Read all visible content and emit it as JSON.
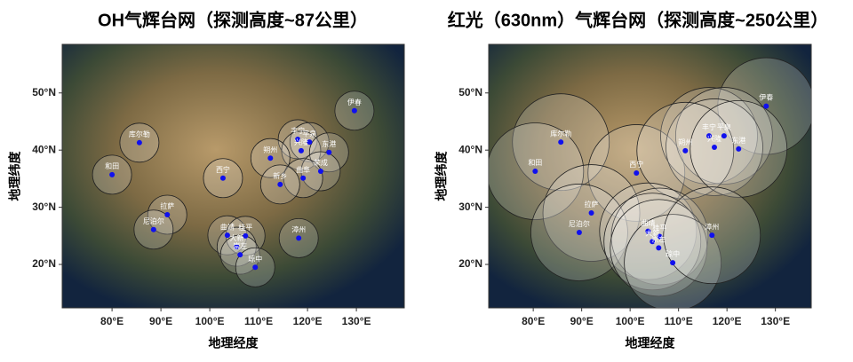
{
  "chart_data": [
    {
      "type": "map",
      "title": "OH气辉台网（探测高度~87公里）",
      "xlabel": "地理经度",
      "ylabel": "地理纬度",
      "xlim": [
        69.8,
        139.8
      ],
      "ylim": [
        12.4,
        58.5
      ],
      "xticks": [
        {
          "value": 80,
          "label": "80°E"
        },
        {
          "value": 90,
          "label": "90°E"
        },
        {
          "value": 100,
          "label": "100°E"
        },
        {
          "value": 110,
          "label": "110°E"
        },
        {
          "value": 120,
          "label": "120°E"
        },
        {
          "value": 130,
          "label": "130°E"
        }
      ],
      "yticks": [
        {
          "value": 20,
          "label": "20°N"
        },
        {
          "value": 30,
          "label": "30°N"
        },
        {
          "value": 40,
          "label": "40°N"
        },
        {
          "value": 50,
          "label": "50°N"
        }
      ],
      "circle_radius": 4,
      "point_color": "#1010ee",
      "stations": [
        {
          "name": "伊春",
          "lon": 129.6,
          "lat": 46.9
        },
        {
          "name": "库尔勒",
          "lon": 85.6,
          "lat": 41.3
        },
        {
          "name": "和田",
          "lon": 80.0,
          "lat": 35.7
        },
        {
          "name": "西宁",
          "lon": 102.7,
          "lat": 35.1
        },
        {
          "name": "拉萨",
          "lon": 91.3,
          "lat": 28.7
        },
        {
          "name": "尼泊尔",
          "lon": 88.5,
          "lat": 26.1
        },
        {
          "name": "丰宁",
          "lon": 118.0,
          "lat": 41.9
        },
        {
          "name": "平泉",
          "lon": 120.4,
          "lat": 41.4
        },
        {
          "name": "兴隆",
          "lon": 118.7,
          "lat": 39.9
        },
        {
          "name": "朔州",
          "lon": 112.4,
          "lat": 38.6
        },
        {
          "name": "东港",
          "lon": 124.4,
          "lat": 39.6
        },
        {
          "name": "荣成",
          "lon": 122.7,
          "lat": 36.3
        },
        {
          "name": "曲阜",
          "lon": 119.1,
          "lat": 35.1
        },
        {
          "name": "新乡",
          "lon": 114.4,
          "lat": 34.0
        },
        {
          "name": "曲靖",
          "lon": 103.6,
          "lat": 25.1
        },
        {
          "name": "桂平",
          "lon": 107.3,
          "lat": 25.0
        },
        {
          "name": "大新",
          "lon": 105.5,
          "lat": 23.1
        },
        {
          "name": "崇左",
          "lon": 106.2,
          "lat": 21.7
        },
        {
          "name": "琼中",
          "lon": 109.3,
          "lat": 19.5
        },
        {
          "name": "漳州",
          "lon": 118.2,
          "lat": 24.6
        }
      ]
    },
    {
      "type": "map",
      "title": "红光（630nm）气辉台网（探测高度~250公里）",
      "xlabel": "地理经度",
      "ylabel": "地理纬度",
      "xlim": [
        70.8,
        137.4
      ],
      "ylim": [
        12.4,
        58.5
      ],
      "xticks": [
        {
          "value": 80,
          "label": "80°E"
        },
        {
          "value": 90,
          "label": "90°E"
        },
        {
          "value": 100,
          "label": "100°E"
        },
        {
          "value": 110,
          "label": "110°E"
        },
        {
          "value": 120,
          "label": "120°E"
        },
        {
          "value": 130,
          "label": "130°E"
        }
      ],
      "yticks": [
        {
          "value": 20,
          "label": "20°N"
        },
        {
          "value": 30,
          "label": "30°N"
        },
        {
          "value": 40,
          "label": "40°N"
        },
        {
          "value": 50,
          "label": "50°N"
        }
      ],
      "circle_radius": 10,
      "point_color": "#1010ee",
      "stations": [
        {
          "name": "伊春",
          "lon": 128.1,
          "lat": 47.7
        },
        {
          "name": "库尔勒",
          "lon": 85.7,
          "lat": 41.4
        },
        {
          "name": "和田",
          "lon": 80.4,
          "lat": 36.3
        },
        {
          "name": "西宁",
          "lon": 101.3,
          "lat": 36.0
        },
        {
          "name": "拉萨",
          "lon": 92.0,
          "lat": 29.0
        },
        {
          "name": "尼泊尔",
          "lon": 89.5,
          "lat": 25.6
        },
        {
          "name": "丰宁",
          "lon": 116.3,
          "lat": 42.5
        },
        {
          "name": "平泉",
          "lon": 119.4,
          "lat": 42.5
        },
        {
          "name": "兴隆",
          "lon": 117.4,
          "lat": 40.5
        },
        {
          "name": "朔州",
          "lon": 111.4,
          "lat": 39.9
        },
        {
          "name": "东港",
          "lon": 122.4,
          "lat": 40.2
        },
        {
          "name": "曲靖",
          "lon": 103.7,
          "lat": 25.8
        },
        {
          "name": "桂平",
          "lon": 106.1,
          "lat": 24.9
        },
        {
          "name": "大新",
          "lon": 104.6,
          "lat": 24.0
        },
        {
          "name": "崇左",
          "lon": 105.9,
          "lat": 22.9
        },
        {
          "name": "琼中",
          "lon": 108.8,
          "lat": 20.3
        },
        {
          "name": "漳州",
          "lon": 116.9,
          "lat": 25.1
        }
      ]
    }
  ]
}
